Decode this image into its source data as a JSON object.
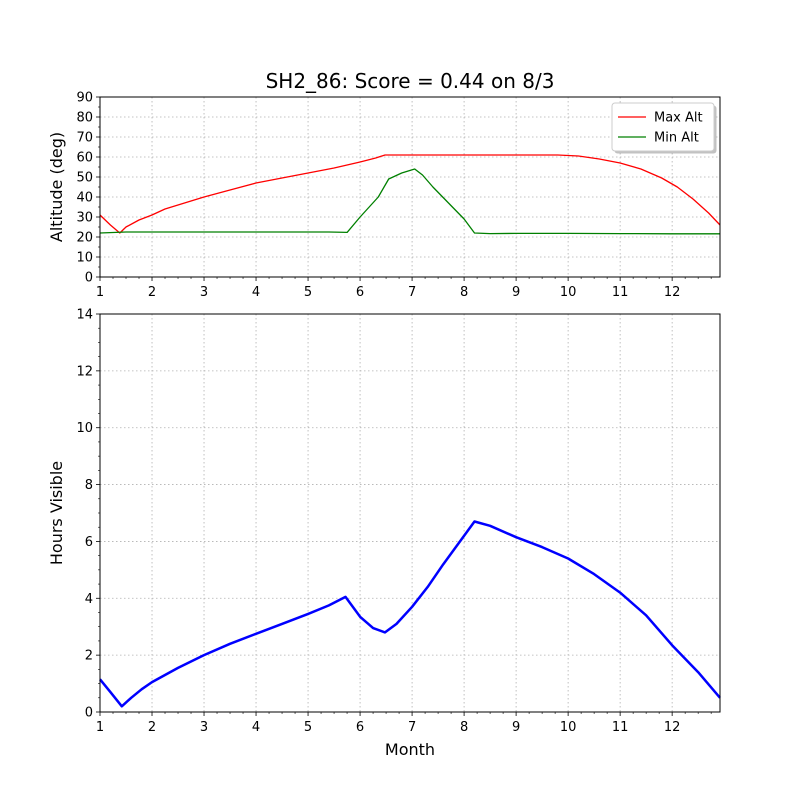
{
  "chart_data": [
    {
      "id": "altitude",
      "type": "line",
      "title": "SH2_86: Score = 0.44 on 8/3",
      "xlabel": "",
      "ylabel": "Altitude (deg)",
      "xlim": [
        1,
        12.92
      ],
      "ylim": [
        0,
        90
      ],
      "x_ticks": [
        1,
        2,
        3,
        4,
        5,
        6,
        7,
        8,
        9,
        10,
        11,
        12
      ],
      "y_ticks": [
        0,
        10,
        20,
        30,
        40,
        50,
        60,
        70,
        80,
        90
      ],
      "grid": true,
      "legend_position": "top-right",
      "series": [
        {
          "name": "Max Alt",
          "color": "#ff0000",
          "points": [
            [
              1.0,
              31
            ],
            [
              1.2,
              26
            ],
            [
              1.38,
              22
            ],
            [
              1.5,
              25
            ],
            [
              1.75,
              28.5
            ],
            [
              2.0,
              31
            ],
            [
              2.25,
              34
            ],
            [
              2.5,
              36
            ],
            [
              3.0,
              40
            ],
            [
              3.5,
              43.5
            ],
            [
              4.0,
              47
            ],
            [
              4.5,
              49.5
            ],
            [
              5.0,
              52
            ],
            [
              5.5,
              54.5
            ],
            [
              6.0,
              57.5
            ],
            [
              6.3,
              59.5
            ],
            [
              6.48,
              61
            ],
            [
              7.0,
              61
            ],
            [
              8.0,
              61
            ],
            [
              9.0,
              61
            ],
            [
              9.8,
              61
            ],
            [
              10.2,
              60.5
            ],
            [
              10.6,
              59
            ],
            [
              11.0,
              57
            ],
            [
              11.4,
              54
            ],
            [
              11.8,
              49.5
            ],
            [
              12.1,
              45
            ],
            [
              12.4,
              39
            ],
            [
              12.7,
              32
            ],
            [
              12.92,
              26
            ]
          ]
        },
        {
          "name": "Min Alt",
          "color": "#008000",
          "points": [
            [
              1.0,
              22
            ],
            [
              1.5,
              22.5
            ],
            [
              2.0,
              22.5
            ],
            [
              2.5,
              22.5
            ],
            [
              3.0,
              22.5
            ],
            [
              3.5,
              22.5
            ],
            [
              4.0,
              22.5
            ],
            [
              4.5,
              22.5
            ],
            [
              5.0,
              22.5
            ],
            [
              5.4,
              22.5
            ],
            [
              5.75,
              22.3
            ],
            [
              6.0,
              30
            ],
            [
              6.35,
              40
            ],
            [
              6.55,
              49
            ],
            [
              6.8,
              52
            ],
            [
              7.05,
              54
            ],
            [
              7.2,
              51
            ],
            [
              7.4,
              45
            ],
            [
              7.7,
              37
            ],
            [
              8.0,
              29
            ],
            [
              8.2,
              22
            ],
            [
              8.5,
              21.7
            ],
            [
              9.0,
              21.8
            ],
            [
              10.0,
              21.8
            ],
            [
              11.0,
              21.7
            ],
            [
              12.0,
              21.6
            ],
            [
              12.92,
              21.6
            ]
          ]
        }
      ]
    },
    {
      "id": "hours",
      "type": "line",
      "title": "",
      "xlabel": "Month",
      "ylabel": "Hours Visible",
      "xlim": [
        1,
        12.92
      ],
      "ylim": [
        0,
        14
      ],
      "x_ticks": [
        1,
        2,
        3,
        4,
        5,
        6,
        7,
        8,
        9,
        10,
        11,
        12
      ],
      "y_ticks": [
        0,
        2,
        4,
        6,
        8,
        10,
        12,
        14
      ],
      "grid": true,
      "series": [
        {
          "color": "#0000ff",
          "points": [
            [
              1.0,
              1.15
            ],
            [
              1.2,
              0.7
            ],
            [
              1.42,
              0.2
            ],
            [
              1.6,
              0.5
            ],
            [
              1.8,
              0.8
            ],
            [
              2.0,
              1.05
            ],
            [
              2.5,
              1.55
            ],
            [
              3.0,
              2.0
            ],
            [
              3.5,
              2.4
            ],
            [
              4.0,
              2.75
            ],
            [
              4.5,
              3.1
            ],
            [
              5.0,
              3.45
            ],
            [
              5.4,
              3.75
            ],
            [
              5.72,
              4.05
            ],
            [
              6.0,
              3.35
            ],
            [
              6.25,
              2.95
            ],
            [
              6.48,
              2.8
            ],
            [
              6.7,
              3.1
            ],
            [
              7.0,
              3.7
            ],
            [
              7.3,
              4.4
            ],
            [
              7.6,
              5.2
            ],
            [
              7.9,
              5.95
            ],
            [
              8.2,
              6.7
            ],
            [
              8.5,
              6.55
            ],
            [
              9.0,
              6.15
            ],
            [
              9.5,
              5.8
            ],
            [
              10.0,
              5.4
            ],
            [
              10.5,
              4.85
            ],
            [
              11.0,
              4.2
            ],
            [
              11.5,
              3.4
            ],
            [
              12.0,
              2.35
            ],
            [
              12.5,
              1.4
            ],
            [
              12.92,
              0.5
            ]
          ]
        }
      ]
    }
  ]
}
